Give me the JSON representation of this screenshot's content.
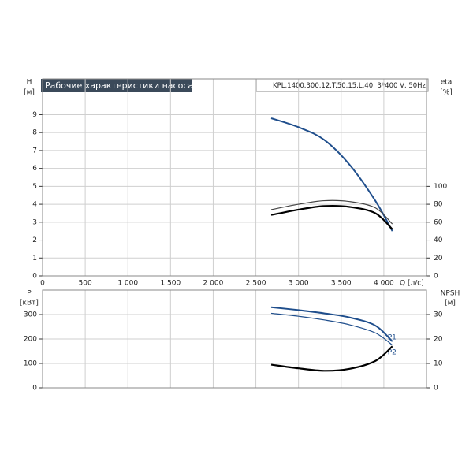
{
  "chart_data": [
    {
      "type": "line",
      "title": "Рабочие характеристики насоса",
      "subtitle": "KPL.1400.300.12.T.50.15.L.40, 3*400 V, 50Hz",
      "ylabel": "H",
      "yunit": "[м]",
      "y2label": "eta",
      "y2unit": "[%]",
      "xlabel": "Q [л/с]",
      "x": [
        2680,
        3000,
        3300,
        3600,
        3900,
        4100
      ],
      "xlim": [
        0,
        4500
      ],
      "xticks": [
        0,
        500,
        {
          "value": 1000,
          "label": "1 000"
        },
        {
          "value": 1500,
          "label": "1 500"
        },
        {
          "value": 2000,
          "label": "2 000"
        },
        {
          "value": 2500,
          "label": "2 500"
        },
        {
          "value": 3000,
          "label": "3 000"
        },
        {
          "value": 3500,
          "label": "3 500"
        },
        {
          "value": 4000,
          "label": "4 000"
        }
      ],
      "ylim": [
        0,
        11
      ],
      "yticks": [
        0,
        1,
        2,
        3,
        4,
        5,
        6,
        7,
        8,
        9
      ],
      "y2lim": [
        0,
        220
      ],
      "y2ticks": [
        0,
        20,
        40,
        60,
        80,
        100
      ],
      "grid": true,
      "series": [
        {
          "color": "#1f4e8c",
          "width": 2,
          "values": [
            8.8,
            8.3,
            7.6,
            6.2,
            4.2,
            2.5
          ]
        },
        {
          "color": "#444444",
          "width": 1.2,
          "axis": "y2",
          "values": [
            74,
            80,
            84,
            83,
            76,
            58
          ]
        },
        {
          "color": "#000000",
          "width": 2.2,
          "axis": "y2",
          "values": [
            68,
            74,
            78,
            77,
            70,
            52
          ]
        }
      ]
    },
    {
      "type": "line",
      "ylabel": "P",
      "yunit": "[кВт]",
      "y2label": "NPSH",
      "y2unit": "[м]",
      "x": [
        2680,
        3000,
        3300,
        3600,
        3900,
        4100
      ],
      "ylim": [
        0,
        400
      ],
      "yticks": [
        0,
        100,
        200,
        300
      ],
      "y2lim": [
        0,
        40
      ],
      "y2ticks": [
        0,
        10,
        20,
        30
      ],
      "grid": true,
      "series": [
        {
          "name": "P1",
          "color": "#1f4e8c",
          "width": 2,
          "values": [
            330,
            318,
            305,
            288,
            255,
            190
          ]
        },
        {
          "name": "P2",
          "color": "#1f4e8c",
          "width": 1.2,
          "values": [
            305,
            293,
            278,
            258,
            225,
            175
          ]
        },
        {
          "color": "#000000",
          "width": 2.2,
          "axis": "y2",
          "values": [
            9.5,
            8,
            7,
            7.8,
            11,
            17
          ]
        }
      ]
    }
  ]
}
